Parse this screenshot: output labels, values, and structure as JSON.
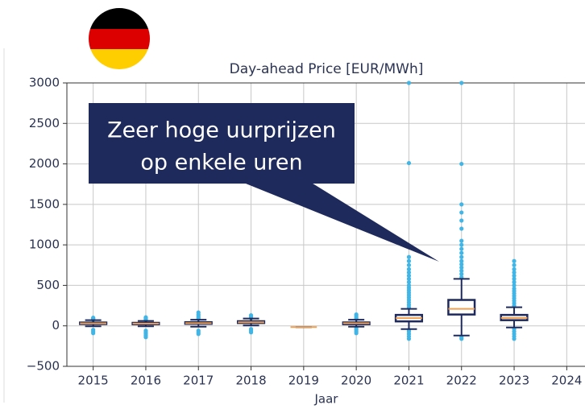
{
  "chart_data": {
    "type": "box",
    "title": "Day-ahead Price [EUR/MWh]",
    "xlabel": "Jaar",
    "annotation": [
      "Zeer hoge uurprijzen",
      "op enkele uren"
    ],
    "categories": [
      "2015",
      "2016",
      "2017",
      "2018",
      "2019",
      "2020",
      "2021",
      "2022",
      "2023",
      "2024"
    ],
    "boxes": [
      {
        "whislo": -5,
        "q1": 22,
        "median": 31,
        "q3": 41,
        "whishi": 70,
        "fliers": [
          -90,
          -70,
          -50,
          75,
          85,
          95,
          100
        ]
      },
      {
        "whislo": -5,
        "q1": 20,
        "median": 28,
        "q3": 37,
        "whishi": 60,
        "fliers": [
          -140,
          -120,
          -100,
          -80,
          -60,
          65,
          80,
          95,
          105
        ]
      },
      {
        "whislo": -10,
        "q1": 25,
        "median": 33,
        "q3": 45,
        "whishi": 75,
        "fliers": [
          -100,
          -80,
          -60,
          85,
          100,
          120,
          140,
          165
        ]
      },
      {
        "whislo": 5,
        "q1": 35,
        "median": 45,
        "q3": 57,
        "whishi": 90,
        "fliers": [
          -80,
          -60,
          -40,
          95,
          110,
          130
        ]
      },
      {
        "whislo": -15,
        "q1": -15,
        "median": -15,
        "q3": -15,
        "whishi": -15,
        "fliers": []
      },
      {
        "whislo": -10,
        "q1": 20,
        "median": 32,
        "q3": 42,
        "whishi": 75,
        "fliers": [
          -90,
          -70,
          -50,
          -30,
          85,
          100,
          120,
          140
        ]
      },
      {
        "whislo": -40,
        "q1": 55,
        "median": 95,
        "q3": 135,
        "whishi": 210,
        "fliers": [
          -160,
          -130,
          -100,
          -70,
          -50,
          230,
          260,
          290,
          320,
          350,
          380,
          410,
          440,
          470,
          500,
          540,
          580,
          620,
          660,
          700,
          750,
          800,
          850,
          2010,
          3000
        ]
      },
      {
        "whislo": -120,
        "q1": 140,
        "median": 210,
        "q3": 320,
        "whishi": 580,
        "fliers": [
          -160,
          -140,
          600,
          640,
          680,
          720,
          760,
          800,
          850,
          900,
          950,
          1000,
          1050,
          1200,
          1300,
          1400,
          1500,
          2000,
          3000
        ]
      },
      {
        "whislo": -20,
        "q1": 70,
        "median": 98,
        "q3": 135,
        "whishi": 230,
        "fliers": [
          -160,
          -130,
          -100,
          -70,
          -40,
          250,
          280,
          310,
          340,
          370,
          400,
          430,
          460,
          500,
          540,
          580,
          620,
          660,
          700,
          750,
          800
        ]
      },
      null
    ],
    "box_color": "#1f2a5c",
    "median_color": "#f0a050",
    "flier_color": "#41b6e6",
    "ylim": [
      -500,
      3000
    ],
    "yticks": [
      {
        "value": -500,
        "label": "−500"
      },
      0,
      500,
      1000,
      1500,
      2000,
      2500,
      3000
    ],
    "grid": true
  }
}
